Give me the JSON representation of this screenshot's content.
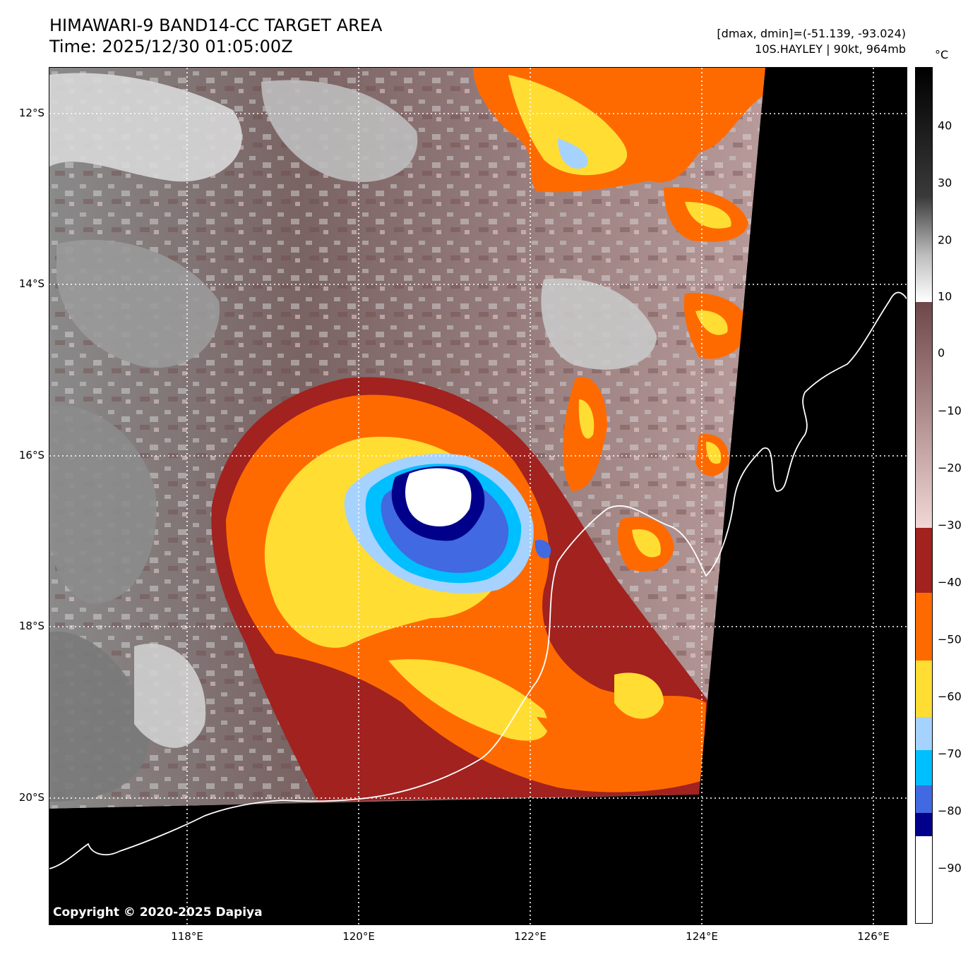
{
  "header": {
    "title_line1": "HIMAWARI-9 BAND14-CC TARGET AREA",
    "title_line2": "Time: 2025/12/30 01:05:00Z",
    "range_text": "[dmax, dmin]=(-51.139, -93.024)",
    "storm_text": "10S.HAYLEY | 90kt, 964mb"
  },
  "map": {
    "lat_labels": [
      "12°S",
      "14°S",
      "16°S",
      "18°S",
      "20°S"
    ],
    "lon_labels": [
      "118°E",
      "120°E",
      "122°E",
      "124°E",
      "126°E"
    ],
    "copyright": "Copyright © 2020-2025 Dapiya",
    "storm_center": {
      "lat": -16.4,
      "lon": 120.9
    }
  },
  "colorbar": {
    "unit": "°C",
    "ticks": [
      "40",
      "30",
      "20",
      "10",
      "0",
      "−10",
      "−20",
      "−30",
      "−40",
      "−50",
      "−60",
      "−70",
      "−80",
      "−90"
    ],
    "colors": {
      "white": "#ffffff",
      "navy": "#00008b",
      "royal_blue": "#4169e1",
      "deep_sky": "#00bfff",
      "light_blue": "#a6d2ff",
      "yellow": "#ffdd33",
      "orange": "#ff6a00",
      "dark_red": "#a1221f",
      "pink": "#f2d7d7",
      "rosy_brown": "#6e4848",
      "gray_light": "#ffffff",
      "black": "#000000"
    }
  }
}
